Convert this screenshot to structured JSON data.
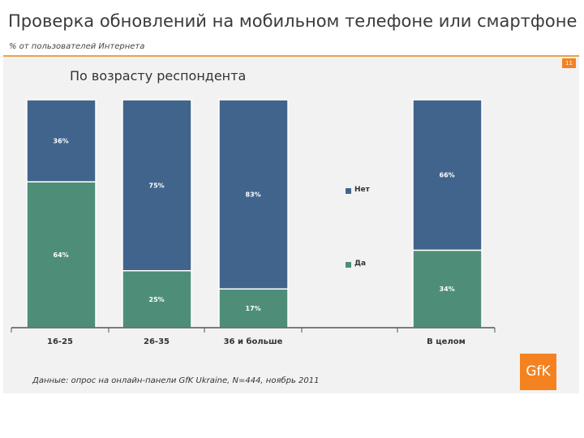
{
  "header": {
    "title": "Проверка обновлений на мобильном телефоне или смартфоне",
    "subtitle": "% от пользователей Интернета",
    "page_number": "11"
  },
  "chart_data": {
    "type": "bar",
    "stacked": true,
    "title": "По возрасту респондента",
    "categories": [
      "16-25",
      "26-35",
      "36 и больше",
      "",
      "В целом"
    ],
    "series": [
      {
        "name": "Да",
        "color": "#4e8e78",
        "values": [
          64,
          25,
          17,
          null,
          34
        ],
        "labels": [
          "64%",
          "25%",
          "17%",
          "",
          "34%"
        ]
      },
      {
        "name": "Нет",
        "color": "#41648c",
        "values": [
          36,
          75,
          83,
          null,
          66
        ],
        "labels": [
          "36%",
          "75%",
          "83%",
          "",
          "66%"
        ]
      }
    ],
    "ylim": [
      0,
      100
    ],
    "xlabel": "",
    "ylabel": "",
    "legend": [
      {
        "name": "Нет",
        "color": "#41648c"
      },
      {
        "name": "Да",
        "color": "#4e8e78"
      }
    ]
  },
  "footer": {
    "source": "Данные: опрос на онлайн-панели GfK Ukraine, N=444, ноябрь 2011",
    "logo_text": "GfK"
  }
}
